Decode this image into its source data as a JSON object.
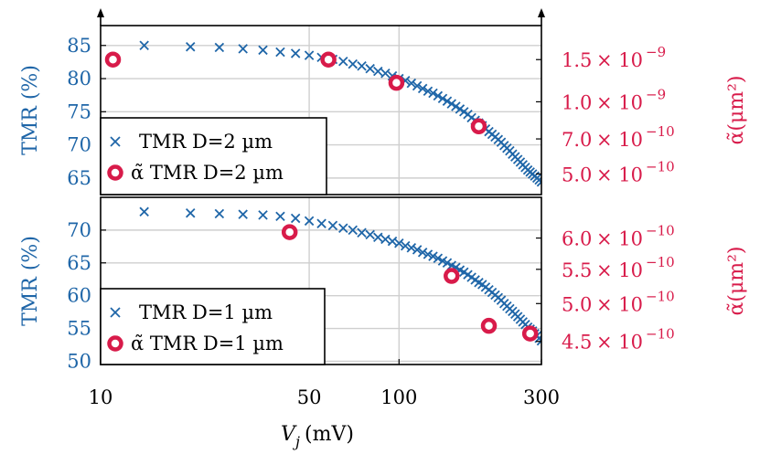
{
  "chart_data": [
    {
      "type": "scatter",
      "panel": "top",
      "x_scale": "log",
      "xlim": [
        10,
        300
      ],
      "ylabel": "TMR (%)",
      "ylim": [
        62.5,
        88
      ],
      "yticks": [
        "85",
        "80",
        "75",
        "70",
        "65"
      ],
      "ytick_values": [
        85,
        80,
        75,
        70,
        65
      ],
      "y2label": "α̃(μm²)",
      "y2_scale": "log",
      "y2lim": [
        4.1e-10,
        2.08e-09
      ],
      "y2ticks": [
        {
          "value": 1.5e-09,
          "mantissa": "1.5",
          "exponent": "−9"
        },
        {
          "value": 1e-09,
          "mantissa": "1.0",
          "exponent": "−9"
        },
        {
          "value": 7e-10,
          "mantissa": "7.0",
          "exponent": "−10"
        },
        {
          "value": 5e-10,
          "mantissa": "5.0",
          "exponent": "−10"
        }
      ],
      "grid": true,
      "legend_position": "lower-left",
      "series": [
        {
          "name": "TMR D=2 µm",
          "marker": "x",
          "axis": "left",
          "x": [
            14,
            20,
            25,
            30,
            35,
            40,
            45,
            50,
            55,
            60,
            65,
            70,
            75,
            80,
            85,
            90,
            95,
            100,
            105,
            110,
            115,
            120,
            125,
            130,
            135,
            140,
            145,
            150,
            155,
            160,
            165,
            170,
            175,
            180,
            185,
            190,
            195,
            200,
            205,
            210,
            215,
            220,
            225,
            230,
            235,
            240,
            245,
            250,
            255,
            260,
            265,
            270,
            275,
            280,
            285,
            290,
            295,
            300
          ],
          "values": [
            85.0,
            84.8,
            84.7,
            84.5,
            84.3,
            84.0,
            83.8,
            83.5,
            83.2,
            82.9,
            82.6,
            82.2,
            81.9,
            81.5,
            81.1,
            80.8,
            80.4,
            80.0,
            79.7,
            79.3,
            78.9,
            78.5,
            78.1,
            77.8,
            77.4,
            77.0,
            76.6,
            76.2,
            75.8,
            75.4,
            75.0,
            74.6,
            74.1,
            73.7,
            73.3,
            72.9,
            72.4,
            72.0,
            71.6,
            71.2,
            70.8,
            70.4,
            69.9,
            69.5,
            69.1,
            68.6,
            68.2,
            67.8,
            67.4,
            67.0,
            66.6,
            66.2,
            65.9,
            65.6,
            65.3,
            65.0,
            64.7,
            64.4
          ]
        },
        {
          "name": "α̃ TMR D=2 µm",
          "marker": "circle",
          "axis": "right",
          "x": [
            11,
            58,
            98,
            185
          ],
          "values": [
            1.5e-09,
            1.5e-09,
            1.2e-09,
            7.9e-10
          ]
        }
      ]
    },
    {
      "type": "scatter",
      "panel": "bottom",
      "x_scale": "log",
      "xlim": [
        10,
        300
      ],
      "xlabel_var": "V",
      "xlabel_sub": "j",
      "xlabel_unit": "(mV)",
      "xticks": [
        "10",
        "50",
        "100",
        "300"
      ],
      "xtick_values": [
        10,
        50,
        100,
        300
      ],
      "ylabel": "TMR (%)",
      "ylim": [
        49.5,
        75
      ],
      "yticks": [
        "70",
        "65",
        "60",
        "55",
        "50"
      ],
      "ytick_values": [
        70,
        65,
        60,
        55,
        50
      ],
      "y2label": "α̃(μm²)",
      "y2_scale": "log",
      "y2lim": [
        4.22e-10,
        6.72e-10
      ],
      "y2ticks": [
        {
          "value": 6e-10,
          "mantissa": "6.0",
          "exponent": "−10"
        },
        {
          "value": 5.5e-10,
          "mantissa": "5.5",
          "exponent": "−10"
        },
        {
          "value": 5e-10,
          "mantissa": "5.0",
          "exponent": "−10"
        },
        {
          "value": 4.5e-10,
          "mantissa": "4.5",
          "exponent": "−10"
        }
      ],
      "grid": true,
      "legend_position": "lower-left",
      "series": [
        {
          "name": "TMR D=1 µm",
          "marker": "x",
          "axis": "left",
          "x": [
            14,
            20,
            25,
            30,
            35,
            40,
            45,
            50,
            55,
            60,
            65,
            70,
            75,
            80,
            85,
            90,
            95,
            100,
            105,
            110,
            115,
            120,
            125,
            130,
            135,
            140,
            145,
            150,
            155,
            160,
            165,
            170,
            175,
            180,
            185,
            190,
            195,
            200,
            205,
            210,
            215,
            220,
            225,
            230,
            235,
            240,
            245,
            250,
            255,
            260,
            265,
            270,
            275,
            280,
            285,
            290,
            295,
            300
          ],
          "values": [
            72.8,
            72.6,
            72.5,
            72.4,
            72.3,
            72.1,
            71.8,
            71.4,
            71.0,
            70.7,
            70.3,
            70.0,
            69.6,
            69.3,
            68.9,
            68.6,
            68.3,
            68.0,
            67.6,
            67.3,
            67.0,
            66.6,
            66.3,
            66.0,
            65.7,
            65.3,
            65.0,
            64.6,
            64.3,
            63.9,
            63.6,
            63.2,
            62.8,
            62.4,
            62.0,
            61.7,
            61.3,
            60.9,
            60.5,
            60.1,
            59.7,
            59.3,
            58.8,
            58.4,
            58.0,
            57.6,
            57.2,
            56.8,
            56.4,
            56.0,
            55.6,
            55.2,
            54.9,
            54.6,
            54.2,
            53.9,
            53.5,
            53.1
          ]
        },
        {
          "name": "α̃ TMR D=1 µm",
          "marker": "circle",
          "axis": "right",
          "x": [
            43,
            150,
            200,
            275
          ],
          "values": [
            6.1e-10,
            5.4e-10,
            4.7e-10,
            4.6e-10
          ]
        }
      ]
    }
  ]
}
